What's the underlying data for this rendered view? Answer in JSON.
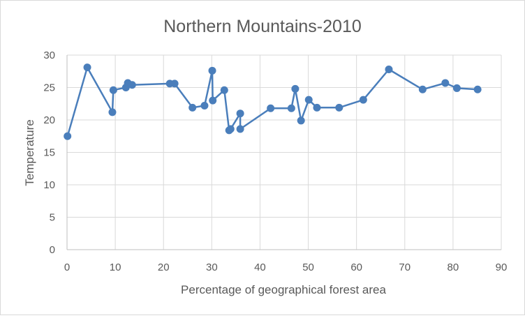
{
  "chart_data": {
    "type": "line",
    "title": "Northern Mountains-2010",
    "xlabel": "Percentage of geographical forest area",
    "ylabel": "Temperature",
    "xlim": [
      0,
      90
    ],
    "ylim": [
      0,
      30
    ],
    "x_ticks": [
      0,
      10,
      20,
      30,
      40,
      50,
      60,
      70,
      80,
      90
    ],
    "y_ticks": [
      0,
      5,
      10,
      15,
      20,
      25,
      30
    ],
    "grid": true,
    "legend": "none",
    "color": "#4a7ebb",
    "series": [
      {
        "points": [
          {
            "x": 0.1,
            "y": 17.5
          },
          {
            "x": 4.2,
            "y": 28.1
          },
          {
            "x": 9.4,
            "y": 21.2
          },
          {
            "x": 9.6,
            "y": 24.6
          },
          {
            "x": 12.2,
            "y": 25.0
          },
          {
            "x": 12.6,
            "y": 25.7
          },
          {
            "x": 13.5,
            "y": 25.4
          },
          {
            "x": 21.3,
            "y": 25.6
          },
          {
            "x": 22.3,
            "y": 25.6
          },
          {
            "x": 26.0,
            "y": 21.9
          },
          {
            "x": 28.5,
            "y": 22.2
          },
          {
            "x": 30.1,
            "y": 27.6
          },
          {
            "x": 30.2,
            "y": 23.0
          },
          {
            "x": 32.6,
            "y": 24.6
          },
          {
            "x": 33.6,
            "y": 18.4
          },
          {
            "x": 33.9,
            "y": 18.6
          },
          {
            "x": 35.9,
            "y": 21.0
          },
          {
            "x": 35.9,
            "y": 18.6
          },
          {
            "x": 42.2,
            "y": 21.8
          },
          {
            "x": 46.5,
            "y": 21.8
          },
          {
            "x": 47.3,
            "y": 24.8
          },
          {
            "x": 48.5,
            "y": 19.9
          },
          {
            "x": 50.1,
            "y": 23.1
          },
          {
            "x": 51.8,
            "y": 21.9
          },
          {
            "x": 56.4,
            "y": 21.9
          },
          {
            "x": 61.4,
            "y": 23.1
          },
          {
            "x": 66.7,
            "y": 27.8
          },
          {
            "x": 73.7,
            "y": 24.7
          },
          {
            "x": 78.4,
            "y": 25.7
          },
          {
            "x": 80.8,
            "y": 24.9
          },
          {
            "x": 85.1,
            "y": 24.7
          }
        ]
      }
    ]
  }
}
